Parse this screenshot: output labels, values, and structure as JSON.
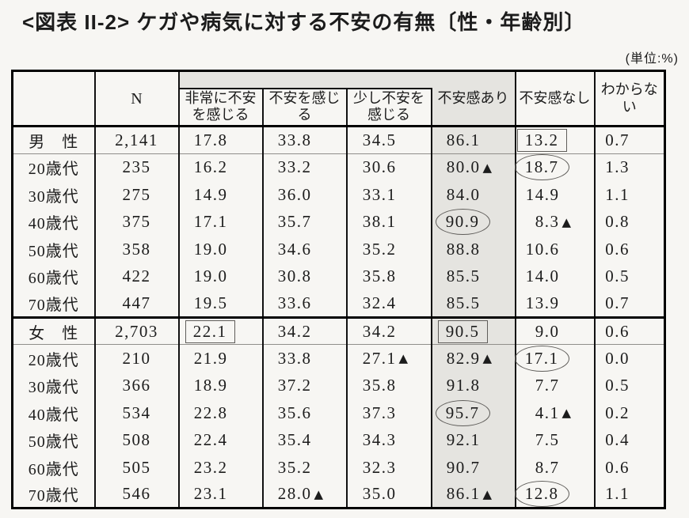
{
  "page": {
    "title": "<図表 II-2> ケガや病気に対する不安の有無〔性・年齢別〕",
    "unit_note": "(単位:%)"
  },
  "table": {
    "columns": {
      "n": "N",
      "very_anxious": "非常に不安を感じる",
      "anxious": "不安を感じる",
      "slightly_anxious": "少し不安を感じる",
      "has_anxiety": "不安感あり",
      "no_anxiety": "不安感なし",
      "dont_know": "わからない"
    },
    "markers": {
      "triangle": "▲"
    },
    "rows": [
      {
        "label": "男　性",
        "n": "2,141",
        "kind": "summary",
        "c": [
          {
            "v": "17.8"
          },
          {
            "v": "33.8"
          },
          {
            "v": "34.5"
          },
          {
            "v": "86.1"
          },
          {
            "v": "13.2",
            "m": "box"
          },
          {
            "v": "0.7"
          }
        ]
      },
      {
        "label": "20歳代",
        "n": "235",
        "c": [
          {
            "v": "16.2"
          },
          {
            "v": "33.2"
          },
          {
            "v": "30.6"
          },
          {
            "v": "80.0",
            "m": "tri"
          },
          {
            "v": "18.7",
            "m": "circle"
          },
          {
            "v": "1.3"
          }
        ]
      },
      {
        "label": "30歳代",
        "n": "275",
        "c": [
          {
            "v": "14.9"
          },
          {
            "v": "36.0"
          },
          {
            "v": "33.1"
          },
          {
            "v": "84.0"
          },
          {
            "v": "14.9"
          },
          {
            "v": "1.1"
          }
        ]
      },
      {
        "label": "40歳代",
        "n": "375",
        "c": [
          {
            "v": "17.1"
          },
          {
            "v": "35.7"
          },
          {
            "v": "38.1"
          },
          {
            "v": "90.9",
            "m": "circle"
          },
          {
            "v": "8.3",
            "m": "tri"
          },
          {
            "v": "0.8"
          }
        ]
      },
      {
        "label": "50歳代",
        "n": "358",
        "c": [
          {
            "v": "19.0"
          },
          {
            "v": "34.6"
          },
          {
            "v": "35.2"
          },
          {
            "v": "88.8"
          },
          {
            "v": "10.6"
          },
          {
            "v": "0.6"
          }
        ]
      },
      {
        "label": "60歳代",
        "n": "422",
        "c": [
          {
            "v": "19.0"
          },
          {
            "v": "30.8"
          },
          {
            "v": "35.8"
          },
          {
            "v": "85.5"
          },
          {
            "v": "14.0"
          },
          {
            "v": "0.5"
          }
        ]
      },
      {
        "label": "70歳代",
        "n": "447",
        "c": [
          {
            "v": "19.5"
          },
          {
            "v": "33.6"
          },
          {
            "v": "32.4"
          },
          {
            "v": "85.5"
          },
          {
            "v": "13.9"
          },
          {
            "v": "0.7"
          }
        ]
      },
      {
        "label": "女　性",
        "n": "2,703",
        "kind": "summary",
        "section_start": true,
        "c": [
          {
            "v": "22.1",
            "m": "box"
          },
          {
            "v": "34.2"
          },
          {
            "v": "34.2"
          },
          {
            "v": "90.5",
            "m": "box"
          },
          {
            "v": "9.0"
          },
          {
            "v": "0.6"
          }
        ]
      },
      {
        "label": "20歳代",
        "n": "210",
        "c": [
          {
            "v": "21.9"
          },
          {
            "v": "33.8"
          },
          {
            "v": "27.1",
            "m": "tri"
          },
          {
            "v": "82.9",
            "m": "tri"
          },
          {
            "v": "17.1",
            "m": "circle"
          },
          {
            "v": "0.0"
          }
        ]
      },
      {
        "label": "30歳代",
        "n": "366",
        "c": [
          {
            "v": "18.9"
          },
          {
            "v": "37.2"
          },
          {
            "v": "35.8"
          },
          {
            "v": "91.8"
          },
          {
            "v": "7.7"
          },
          {
            "v": "0.5"
          }
        ]
      },
      {
        "label": "40歳代",
        "n": "534",
        "c": [
          {
            "v": "22.8"
          },
          {
            "v": "35.6"
          },
          {
            "v": "37.3"
          },
          {
            "v": "95.7",
            "m": "circle"
          },
          {
            "v": "4.1",
            "m": "tri"
          },
          {
            "v": "0.2"
          }
        ]
      },
      {
        "label": "50歳代",
        "n": "508",
        "c": [
          {
            "v": "22.4"
          },
          {
            "v": "35.4"
          },
          {
            "v": "34.3"
          },
          {
            "v": "92.1"
          },
          {
            "v": "7.5"
          },
          {
            "v": "0.4"
          }
        ]
      },
      {
        "label": "60歳代",
        "n": "505",
        "c": [
          {
            "v": "23.2"
          },
          {
            "v": "35.2"
          },
          {
            "v": "32.3"
          },
          {
            "v": "90.7"
          },
          {
            "v": "8.7"
          },
          {
            "v": "0.6"
          }
        ]
      },
      {
        "label": "70歳代",
        "n": "546",
        "c": [
          {
            "v": "23.1"
          },
          {
            "v": "28.0",
            "m": "tri"
          },
          {
            "v": "35.0"
          },
          {
            "v": "86.1",
            "m": "tri"
          },
          {
            "v": "12.8",
            "m": "circle"
          },
          {
            "v": "1.1"
          }
        ]
      }
    ]
  }
}
